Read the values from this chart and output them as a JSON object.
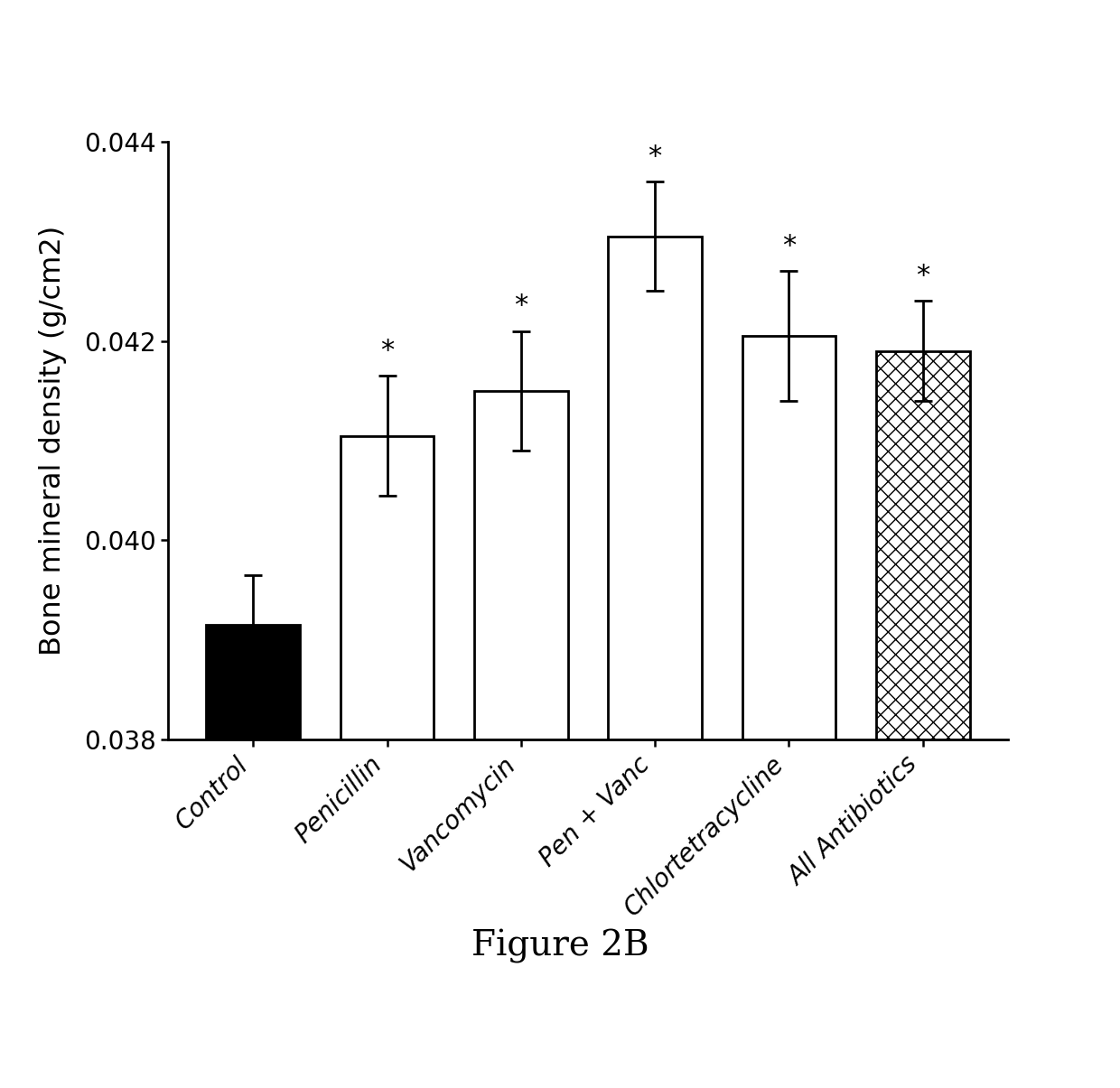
{
  "categories": [
    "Control",
    "Penicillin",
    "Vancomycin",
    "Pen + Vanc",
    "Chlortetracycline",
    "All Antibiotics"
  ],
  "values": [
    0.03915,
    0.04105,
    0.0415,
    0.04305,
    0.04205,
    0.0419
  ],
  "errors": [
    0.0005,
    0.0006,
    0.0006,
    0.00055,
    0.00065,
    0.0005
  ],
  "bar_styles": [
    "solid_black",
    "solid_white",
    "solid_white",
    "solid_white",
    "solid_white",
    "hatched"
  ],
  "show_star": [
    false,
    true,
    true,
    true,
    true,
    true
  ],
  "ylabel": "Bone mineral density (g/cm2)",
  "ylim": [
    0.038,
    0.044
  ],
  "yticks": [
    0.038,
    0.04,
    0.042,
    0.044
  ],
  "figure_label": "Figure 2B",
  "bar_width": 0.7,
  "bar_edge_color": "#000000",
  "bar_linewidth": 2.0,
  "error_capsize": 7,
  "error_linewidth": 2.0,
  "star_fontsize": 22,
  "ylabel_fontsize": 23,
  "tick_fontsize": 20,
  "xtick_fontsize": 20,
  "figure_label_fontsize": 28,
  "background_color": "#ffffff"
}
